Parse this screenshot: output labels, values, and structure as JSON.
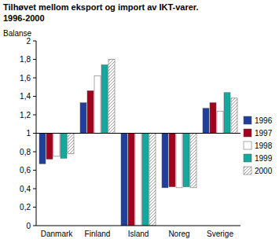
{
  "chart_data": {
    "type": "bar",
    "title": "Tilhøvet mellom eksport og import av IKT-varer.",
    "subtitle": "1996-2000",
    "y_label": "Balanse",
    "categories": [
      "Danmark",
      "Finland",
      "Island",
      "Noreg",
      "Sverige"
    ],
    "baseline": 1,
    "series": [
      {
        "name": "1996",
        "color": "#1f3f9a",
        "values": [
          0.67,
          1.33,
          0,
          0.41,
          1.27
        ]
      },
      {
        "name": "1997",
        "color": "#a3001e",
        "values": [
          0.72,
          1.46,
          0,
          0.42,
          1.33
        ]
      },
      {
        "name": "1998",
        "color": "#ffffff",
        "values": [
          0.75,
          1.62,
          0,
          0.41,
          1.24
        ]
      },
      {
        "name": "1999",
        "color": "#16a89e",
        "values": [
          0.73,
          1.74,
          0,
          0.42,
          1.44
        ]
      },
      {
        "name": "2000",
        "color": "#a0a0a0",
        "values": [
          0.78,
          1.8,
          0,
          0.41,
          1.38
        ]
      }
    ],
    "ylim": [
      0,
      2
    ],
    "yticks": [
      0,
      {
        "value": 0.2,
        "label": "0,2"
      },
      {
        "value": 0.4,
        "label": "0,4"
      },
      {
        "value": 0.6,
        "label": "0,6"
      },
      {
        "value": 0.8,
        "label": "0,8"
      },
      1,
      {
        "value": 1.2,
        "label": "1,2"
      },
      {
        "value": 1.4,
        "label": "1,4"
      },
      {
        "value": 1.6,
        "label": "1,6"
      },
      {
        "value": 1.8,
        "label": "1,8"
      },
      2
    ],
    "legend": "right",
    "grid": false
  }
}
